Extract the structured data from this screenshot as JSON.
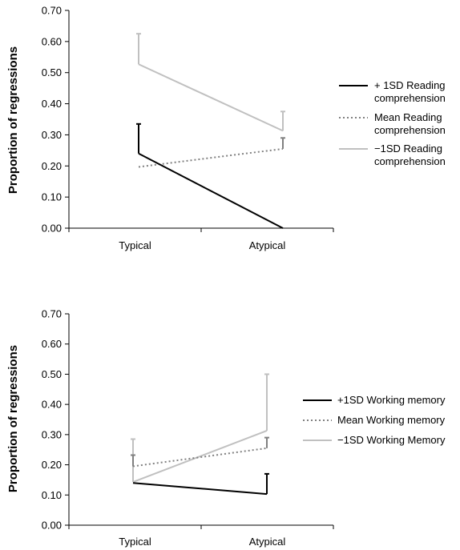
{
  "chart_data": [
    {
      "type": "line",
      "title": "",
      "xlabel": "",
      "ylabel": "Proportion of regressions",
      "categories": [
        "Typical",
        "Atypical"
      ],
      "ylim": [
        0,
        0.7
      ],
      "yticks": [
        "0.00",
        "0.10",
        "0.20",
        "0.30",
        "0.40",
        "0.50",
        "0.60",
        "0.70"
      ],
      "grid": false,
      "legend_position": "right",
      "series": [
        {
          "name": "+ 1SD Reading comprehension",
          "legend_lines": [
            "+ 1SD Reading",
            "comprehension"
          ],
          "values": [
            0.24,
            0.0
          ],
          "error_upper": [
            0.335,
            null
          ],
          "color": "#000000",
          "style": "solid"
        },
        {
          "name": "Mean Reading comprehension",
          "legend_lines": [
            "Mean  Reading",
            "comprehension"
          ],
          "values": [
            0.197,
            0.255
          ],
          "error_upper": [
            0.197,
            0.29
          ],
          "color": "#808080",
          "style": "dotted"
        },
        {
          "name": "−1SD Reading comprehension",
          "legend_lines": [
            "−1SD  Reading",
            "comprehension"
          ],
          "values": [
            0.527,
            0.313
          ],
          "error_upper": [
            0.625,
            0.375
          ],
          "color": "#c0c0c0",
          "style": "solid"
        }
      ]
    },
    {
      "type": "line",
      "title": "",
      "xlabel": "",
      "ylabel": "Proportion of regressions",
      "categories": [
        "Typical",
        "Atypical"
      ],
      "ylim": [
        0,
        0.7
      ],
      "yticks": [
        "0.00",
        "0.10",
        "0.20",
        "0.30",
        "0.40",
        "0.50",
        "0.60",
        "0.70"
      ],
      "grid": false,
      "legend_position": "right",
      "series": [
        {
          "name": "+1SD Working memory",
          "legend_lines": [
            "+1SD Working memory"
          ],
          "values": [
            0.14,
            0.103
          ],
          "error_upper": [
            null,
            0.17
          ],
          "color": "#000000",
          "style": "solid"
        },
        {
          "name": "Mean Working memory",
          "legend_lines": [
            "Mean Working memory"
          ],
          "values": [
            0.195,
            0.255
          ],
          "error_upper": [
            0.232,
            0.29
          ],
          "color": "#808080",
          "style": "dotted"
        },
        {
          "name": "−1SD Working Memory",
          "legend_lines": [
            "−1SD Working Memory"
          ],
          "values": [
            0.143,
            0.313
          ],
          "error_upper": [
            0.285,
            0.5
          ],
          "color": "#c0c0c0",
          "style": "solid"
        }
      ]
    }
  ]
}
